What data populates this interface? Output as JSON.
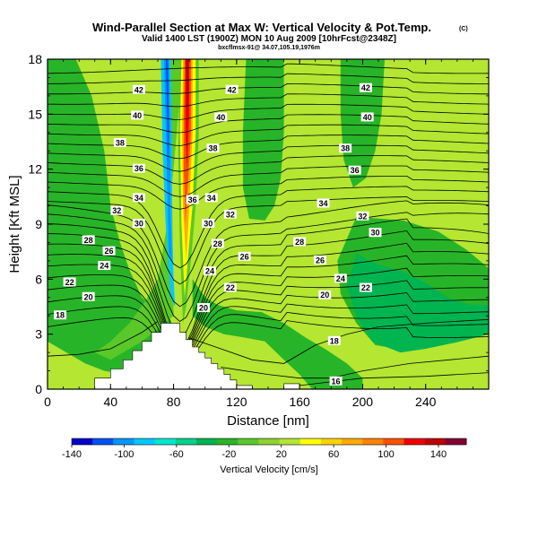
{
  "chart_data": {
    "type": "heatmap",
    "title": "Wind-Parallel Section at Max W: Vertical Velocity & Pot.Temp.",
    "title_mark": "(C)",
    "subtitle": "Valid 1400 LST (1900Z) MON 10 Aug 2009 [10hrFcst@2348Z]",
    "info_line": "bxcflmsx-91@ 34.07,105.19,1976m",
    "xlabel": "Distance [nm]",
    "ylabel": "Height [Kft MSL]",
    "xlim": [
      0,
      280
    ],
    "ylim": [
      0,
      18
    ],
    "x_ticks": [
      0,
      40,
      80,
      120,
      160,
      200,
      240
    ],
    "y_ticks": [
      0,
      3,
      6,
      9,
      12,
      15,
      18
    ],
    "colorbar": {
      "label": "Vertical Velocity [cm/s]",
      "tick_labels": [
        "-140",
        "-100",
        "-60",
        "-20",
        "20",
        "60",
        "100",
        "140"
      ],
      "colors": [
        "#0000c8",
        "#0050f0",
        "#0096ff",
        "#00c8ff",
        "#00e6d2",
        "#00d28c",
        "#00b450",
        "#28b428",
        "#5ac828",
        "#8cd232",
        "#b4e632",
        "#ffff00",
        "#ffd200",
        "#ffaa00",
        "#ff8200",
        "#ff5000",
        "#f00000",
        "#be0000",
        "#820032"
      ]
    },
    "contour_labels": [
      {
        "x": 58,
        "y": 16.3,
        "text": "42"
      },
      {
        "x": 117,
        "y": 16.3,
        "text": "42"
      },
      {
        "x": 202,
        "y": 16.4,
        "text": "42"
      },
      {
        "x": 57,
        "y": 14.9,
        "text": "40"
      },
      {
        "x": 110,
        "y": 14.8,
        "text": "40"
      },
      {
        "x": 203,
        "y": 14.8,
        "text": "40"
      },
      {
        "x": 46,
        "y": 13.4,
        "text": "38"
      },
      {
        "x": 105,
        "y": 13.1,
        "text": "38"
      },
      {
        "x": 189,
        "y": 13.1,
        "text": "38"
      },
      {
        "x": 58,
        "y": 12.0,
        "text": "36"
      },
      {
        "x": 195,
        "y": 11.9,
        "text": "36"
      },
      {
        "x": 58,
        "y": 10.4,
        "text": "34"
      },
      {
        "x": 92,
        "y": 10.3,
        "text": "36"
      },
      {
        "x": 104,
        "y": 10.4,
        "text": "34"
      },
      {
        "x": 175,
        "y": 10.1,
        "text": "34"
      },
      {
        "x": 44,
        "y": 9.7,
        "text": "32"
      },
      {
        "x": 116,
        "y": 9.5,
        "text": "32"
      },
      {
        "x": 200,
        "y": 9.4,
        "text": "32"
      },
      {
        "x": 58,
        "y": 9.0,
        "text": "30"
      },
      {
        "x": 102,
        "y": 9.0,
        "text": "30"
      },
      {
        "x": 208,
        "y": 8.5,
        "text": "30"
      },
      {
        "x": 26,
        "y": 8.1,
        "text": "28"
      },
      {
        "x": 108,
        "y": 7.9,
        "text": "28"
      },
      {
        "x": 160,
        "y": 8.0,
        "text": "28"
      },
      {
        "x": 39,
        "y": 7.5,
        "text": "26"
      },
      {
        "x": 125,
        "y": 7.2,
        "text": "26"
      },
      {
        "x": 173,
        "y": 7.0,
        "text": "26"
      },
      {
        "x": 36,
        "y": 6.7,
        "text": "24"
      },
      {
        "x": 103,
        "y": 6.4,
        "text": "24"
      },
      {
        "x": 186,
        "y": 6.0,
        "text": "24"
      },
      {
        "x": 14,
        "y": 5.8,
        "text": "22"
      },
      {
        "x": 116,
        "y": 5.5,
        "text": "22"
      },
      {
        "x": 202,
        "y": 5.5,
        "text": "22"
      },
      {
        "x": 26,
        "y": 5.0,
        "text": "20"
      },
      {
        "x": 99,
        "y": 4.4,
        "text": "20"
      },
      {
        "x": 176,
        "y": 5.1,
        "text": "20"
      },
      {
        "x": 8,
        "y": 4.0,
        "text": "18"
      },
      {
        "x": 182,
        "y": 2.6,
        "text": "18"
      },
      {
        "x": 183,
        "y": 0.4,
        "text": "16"
      }
    ]
  }
}
